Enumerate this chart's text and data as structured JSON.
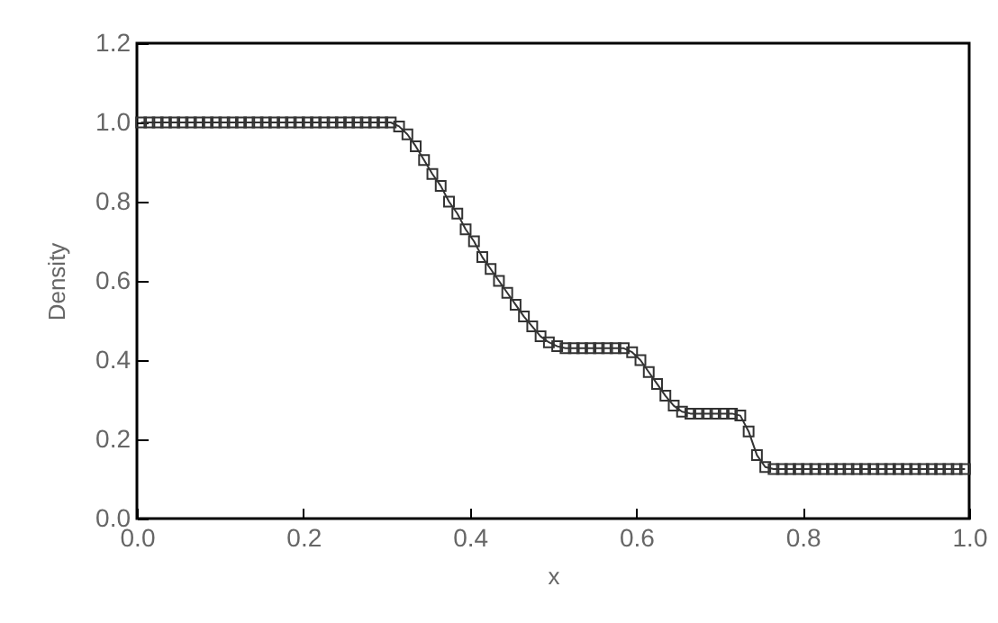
{
  "chart_data": {
    "type": "line",
    "xlabel": "x",
    "ylabel": "Density",
    "xlim": [
      0,
      1
    ],
    "ylim": [
      0,
      1.2
    ],
    "xticks": [
      {
        "value": 0,
        "label": "0.0"
      },
      0.2,
      0.4,
      0.6,
      0.8,
      {
        "value": 1,
        "label": "1.0"
      }
    ],
    "yticks": [
      {
        "value": 0,
        "label": "0.0"
      },
      0.2,
      0.4,
      0.6,
      0.8,
      {
        "value": 1,
        "label": "1.0"
      },
      1.2
    ],
    "grid": false,
    "marker": "square",
    "line_style": "solid",
    "x": [
      0.005,
      0.015,
      0.025,
      0.035,
      0.045,
      0.055,
      0.065,
      0.075,
      0.085,
      0.095,
      0.105,
      0.115,
      0.125,
      0.135,
      0.145,
      0.155,
      0.165,
      0.175,
      0.185,
      0.195,
      0.205,
      0.215,
      0.225,
      0.235,
      0.245,
      0.255,
      0.265,
      0.275,
      0.285,
      0.295,
      0.305,
      0.315,
      0.325,
      0.335,
      0.345,
      0.355,
      0.365,
      0.375,
      0.385,
      0.395,
      0.405,
      0.415,
      0.425,
      0.435,
      0.445,
      0.455,
      0.465,
      0.475,
      0.485,
      0.495,
      0.505,
      0.515,
      0.525,
      0.535,
      0.545,
      0.555,
      0.565,
      0.575,
      0.585,
      0.595,
      0.605,
      0.615,
      0.625,
      0.635,
      0.645,
      0.655,
      0.665,
      0.675,
      0.685,
      0.695,
      0.705,
      0.715,
      0.725,
      0.735,
      0.745,
      0.755,
      0.765,
      0.775,
      0.785,
      0.795,
      0.805,
      0.815,
      0.825,
      0.835,
      0.845,
      0.855,
      0.865,
      0.875,
      0.885,
      0.895,
      0.905,
      0.915,
      0.925,
      0.935,
      0.945,
      0.955,
      0.965,
      0.975,
      0.985,
      0.995
    ],
    "series": [
      {
        "color": "#333333",
        "values": [
          1.0,
          1.0,
          1.0,
          1.0,
          1.0,
          1.0,
          1.0,
          1.0,
          1.0,
          1.0,
          1.0,
          1.0,
          1.0,
          1.0,
          1.0,
          1.0,
          1.0,
          1.0,
          1.0,
          1.0,
          1.0,
          1.0,
          1.0,
          1.0,
          1.0,
          1.0,
          1.0,
          1.0,
          1.0,
          1.0,
          1.0,
          0.99,
          0.97,
          0.94,
          0.905,
          0.87,
          0.84,
          0.8,
          0.77,
          0.73,
          0.7,
          0.66,
          0.63,
          0.6,
          0.57,
          0.54,
          0.51,
          0.485,
          0.46,
          0.445,
          0.435,
          0.43,
          0.43,
          0.43,
          0.43,
          0.43,
          0.43,
          0.43,
          0.43,
          0.42,
          0.4,
          0.37,
          0.34,
          0.31,
          0.285,
          0.27,
          0.265,
          0.265,
          0.265,
          0.265,
          0.265,
          0.265,
          0.26,
          0.22,
          0.16,
          0.13,
          0.125,
          0.125,
          0.125,
          0.125,
          0.125,
          0.125,
          0.125,
          0.125,
          0.125,
          0.125,
          0.125,
          0.125,
          0.125,
          0.125,
          0.125,
          0.125,
          0.125,
          0.125,
          0.125,
          0.125,
          0.125,
          0.125,
          0.125,
          0.125
        ]
      }
    ]
  }
}
